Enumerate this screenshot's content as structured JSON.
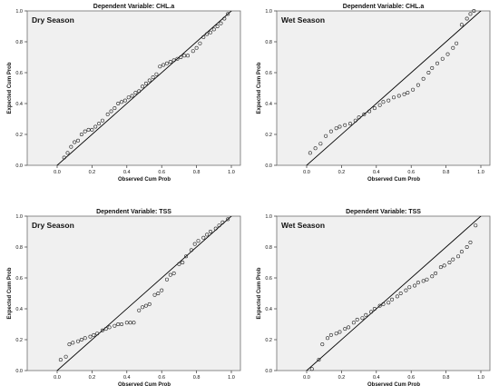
{
  "chart_data": [
    {
      "type": "scatter",
      "title": "Dependent Variable: CHL.a",
      "season": "Dry Season",
      "xlabel": "Observed Cum Prob",
      "ylabel": "Expected Cum Prob",
      "xlim": [
        0,
        1
      ],
      "ylim": [
        0,
        1
      ],
      "x_ticks": [
        "0.0",
        "0.2",
        "0.4",
        "0.6",
        "0.8",
        "1.0"
      ],
      "y_ticks": [
        "0.0",
        "0.2",
        "0.4",
        "0.6",
        "0.8",
        "1.0"
      ],
      "grid": false,
      "reference_line": [
        [
          0,
          0
        ],
        [
          1,
          1
        ]
      ],
      "points": {
        "x": [
          0.04,
          0.06,
          0.08,
          0.1,
          0.12,
          0.14,
          0.16,
          0.18,
          0.2,
          0.22,
          0.24,
          0.26,
          0.29,
          0.31,
          0.33,
          0.35,
          0.37,
          0.39,
          0.41,
          0.43,
          0.45,
          0.47,
          0.49,
          0.51,
          0.53,
          0.55,
          0.57,
          0.59,
          0.61,
          0.63,
          0.65,
          0.67,
          0.69,
          0.71,
          0.73,
          0.75,
          0.78,
          0.8,
          0.82,
          0.84,
          0.86,
          0.88,
          0.9,
          0.92,
          0.94,
          0.96,
          0.98
        ],
        "y": [
          0.05,
          0.08,
          0.12,
          0.15,
          0.16,
          0.2,
          0.22,
          0.23,
          0.23,
          0.25,
          0.27,
          0.29,
          0.33,
          0.35,
          0.37,
          0.4,
          0.41,
          0.42,
          0.44,
          0.45,
          0.47,
          0.48,
          0.51,
          0.53,
          0.55,
          0.57,
          0.59,
          0.64,
          0.65,
          0.66,
          0.67,
          0.68,
          0.69,
          0.7,
          0.71,
          0.71,
          0.74,
          0.76,
          0.79,
          0.83,
          0.85,
          0.86,
          0.88,
          0.9,
          0.92,
          0.95,
          0.98
        ]
      }
    },
    {
      "type": "scatter",
      "title": "Dependent Variable: CHL.a",
      "season": "Wet Season",
      "xlabel": "Observed Cum Prob",
      "ylabel": "Expected Cum Prob",
      "xlim": [
        0,
        1
      ],
      "ylim": [
        0,
        1
      ],
      "x_ticks": [
        "0.0",
        "0.2",
        "0.4",
        "0.6",
        "0.8",
        "1.0"
      ],
      "y_ticks": [
        "0.0",
        "0.2",
        "0.4",
        "0.6",
        "0.8",
        "1.0"
      ],
      "grid": false,
      "reference_line": [
        [
          0,
          0
        ],
        [
          1,
          1
        ]
      ],
      "points": {
        "x": [
          0.02,
          0.05,
          0.08,
          0.11,
          0.14,
          0.17,
          0.19,
          0.22,
          0.25,
          0.28,
          0.3,
          0.33,
          0.36,
          0.39,
          0.42,
          0.44,
          0.47,
          0.5,
          0.53,
          0.56,
          0.58,
          0.61,
          0.64,
          0.67,
          0.7,
          0.72,
          0.75,
          0.78,
          0.81,
          0.84,
          0.86,
          0.89,
          0.92,
          0.94,
          0.96
        ],
        "y": [
          0.08,
          0.11,
          0.14,
          0.19,
          0.22,
          0.24,
          0.25,
          0.26,
          0.27,
          0.29,
          0.31,
          0.33,
          0.35,
          0.37,
          0.39,
          0.41,
          0.42,
          0.44,
          0.45,
          0.46,
          0.47,
          0.49,
          0.52,
          0.56,
          0.6,
          0.63,
          0.66,
          0.69,
          0.72,
          0.76,
          0.79,
          0.91,
          0.95,
          0.98,
          1.0
        ]
      }
    },
    {
      "type": "scatter",
      "title": "Dependent Variable: TSS",
      "season": "Dry Season",
      "xlabel": "Observed Cum Prob",
      "ylabel": "Expected Cum Prob",
      "xlim": [
        0,
        1
      ],
      "ylim": [
        0,
        1
      ],
      "x_ticks": [
        "0.0",
        "0.2",
        "0.4",
        "0.6",
        "0.8",
        "1.0"
      ],
      "y_ticks": [
        "0.0",
        "0.2",
        "0.4",
        "0.6",
        "0.8",
        "1.0"
      ],
      "grid": false,
      "reference_line": [
        [
          0,
          0
        ],
        [
          1,
          1
        ]
      ],
      "points": {
        "x": [
          0.02,
          0.05,
          0.07,
          0.09,
          0.12,
          0.14,
          0.16,
          0.19,
          0.21,
          0.23,
          0.26,
          0.28,
          0.3,
          0.33,
          0.35,
          0.37,
          0.4,
          0.42,
          0.44,
          0.47,
          0.49,
          0.51,
          0.53,
          0.56,
          0.58,
          0.6,
          0.63,
          0.65,
          0.67,
          0.7,
          0.72,
          0.74,
          0.77,
          0.79,
          0.81,
          0.84,
          0.86,
          0.88,
          0.91,
          0.93,
          0.95,
          0.98
        ],
        "y": [
          0.07,
          0.09,
          0.17,
          0.18,
          0.19,
          0.2,
          0.21,
          0.22,
          0.23,
          0.24,
          0.26,
          0.27,
          0.28,
          0.29,
          0.3,
          0.3,
          0.31,
          0.31,
          0.31,
          0.39,
          0.41,
          0.42,
          0.43,
          0.49,
          0.5,
          0.52,
          0.59,
          0.62,
          0.63,
          0.69,
          0.7,
          0.74,
          0.78,
          0.82,
          0.84,
          0.86,
          0.88,
          0.9,
          0.92,
          0.94,
          0.96,
          0.98
        ]
      }
    },
    {
      "type": "scatter",
      "title": "Dependent Variable: TSS",
      "season": "Wet Season",
      "xlabel": "Observed Cum Prob",
      "ylabel": "Expected Cum Prob",
      "xlim": [
        0,
        1
      ],
      "ylim": [
        0,
        1
      ],
      "x_ticks": [
        "0.0",
        "0.2",
        "0.4",
        "0.6",
        "0.8",
        "1.0"
      ],
      "y_ticks": [
        "0.0",
        "0.2",
        "0.4",
        "0.6",
        "0.8",
        "1.0"
      ],
      "grid": false,
      "reference_line": [
        [
          0,
          0
        ],
        [
          1,
          1
        ]
      ],
      "points": {
        "x": [
          0.03,
          0.07,
          0.09,
          0.12,
          0.14,
          0.17,
          0.19,
          0.22,
          0.24,
          0.27,
          0.29,
          0.32,
          0.34,
          0.37,
          0.39,
          0.42,
          0.44,
          0.47,
          0.49,
          0.52,
          0.54,
          0.57,
          0.59,
          0.62,
          0.64,
          0.67,
          0.69,
          0.72,
          0.74,
          0.77,
          0.79,
          0.82,
          0.84,
          0.87,
          0.89,
          0.92,
          0.94,
          0.97
        ],
        "y": [
          0.01,
          0.07,
          0.17,
          0.21,
          0.23,
          0.24,
          0.25,
          0.27,
          0.28,
          0.31,
          0.33,
          0.34,
          0.36,
          0.38,
          0.4,
          0.42,
          0.43,
          0.44,
          0.46,
          0.48,
          0.5,
          0.52,
          0.54,
          0.55,
          0.57,
          0.58,
          0.59,
          0.61,
          0.63,
          0.67,
          0.68,
          0.7,
          0.72,
          0.74,
          0.77,
          0.8,
          0.83,
          0.94
        ]
      }
    }
  ]
}
